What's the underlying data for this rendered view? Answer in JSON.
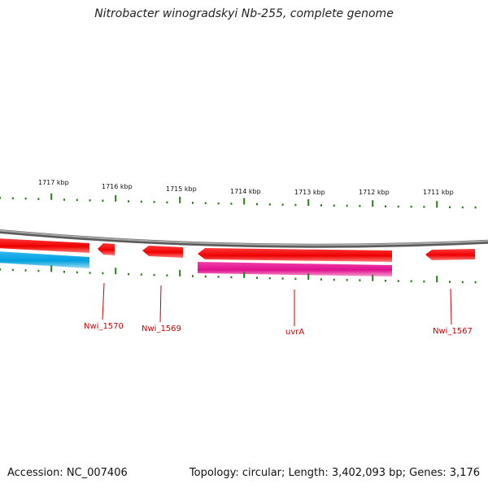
{
  "title": "Nitrobacter winogradskyi Nb-255, complete genome",
  "accession": "Accession: NC_007406",
  "summary": "Topology: circular; Length: 3,402,093 bp; Genes: 3,176",
  "colors": {
    "backbone": "#808080",
    "forward_gene": "#ff0000",
    "reverse_gene_cyan": "#00a8e8",
    "reverse_gene_magenta": "#e8169a",
    "tick": "#2a7a1a",
    "gene_label": "#cc0000"
  },
  "kbp_ticks": [
    {
      "label": "1717 kbp"
    },
    {
      "label": "1716 kbp"
    },
    {
      "label": "1715 kbp"
    },
    {
      "label": "1714 kbp"
    },
    {
      "label": "1713 kbp"
    },
    {
      "label": "1712 kbp"
    },
    {
      "label": "1711 kbp"
    }
  ],
  "genes": [
    {
      "label": "Nwi_1570"
    },
    {
      "label": "Nwi_1569"
    },
    {
      "label": "uvrA"
    },
    {
      "label": "Nwi_1567"
    }
  ]
}
